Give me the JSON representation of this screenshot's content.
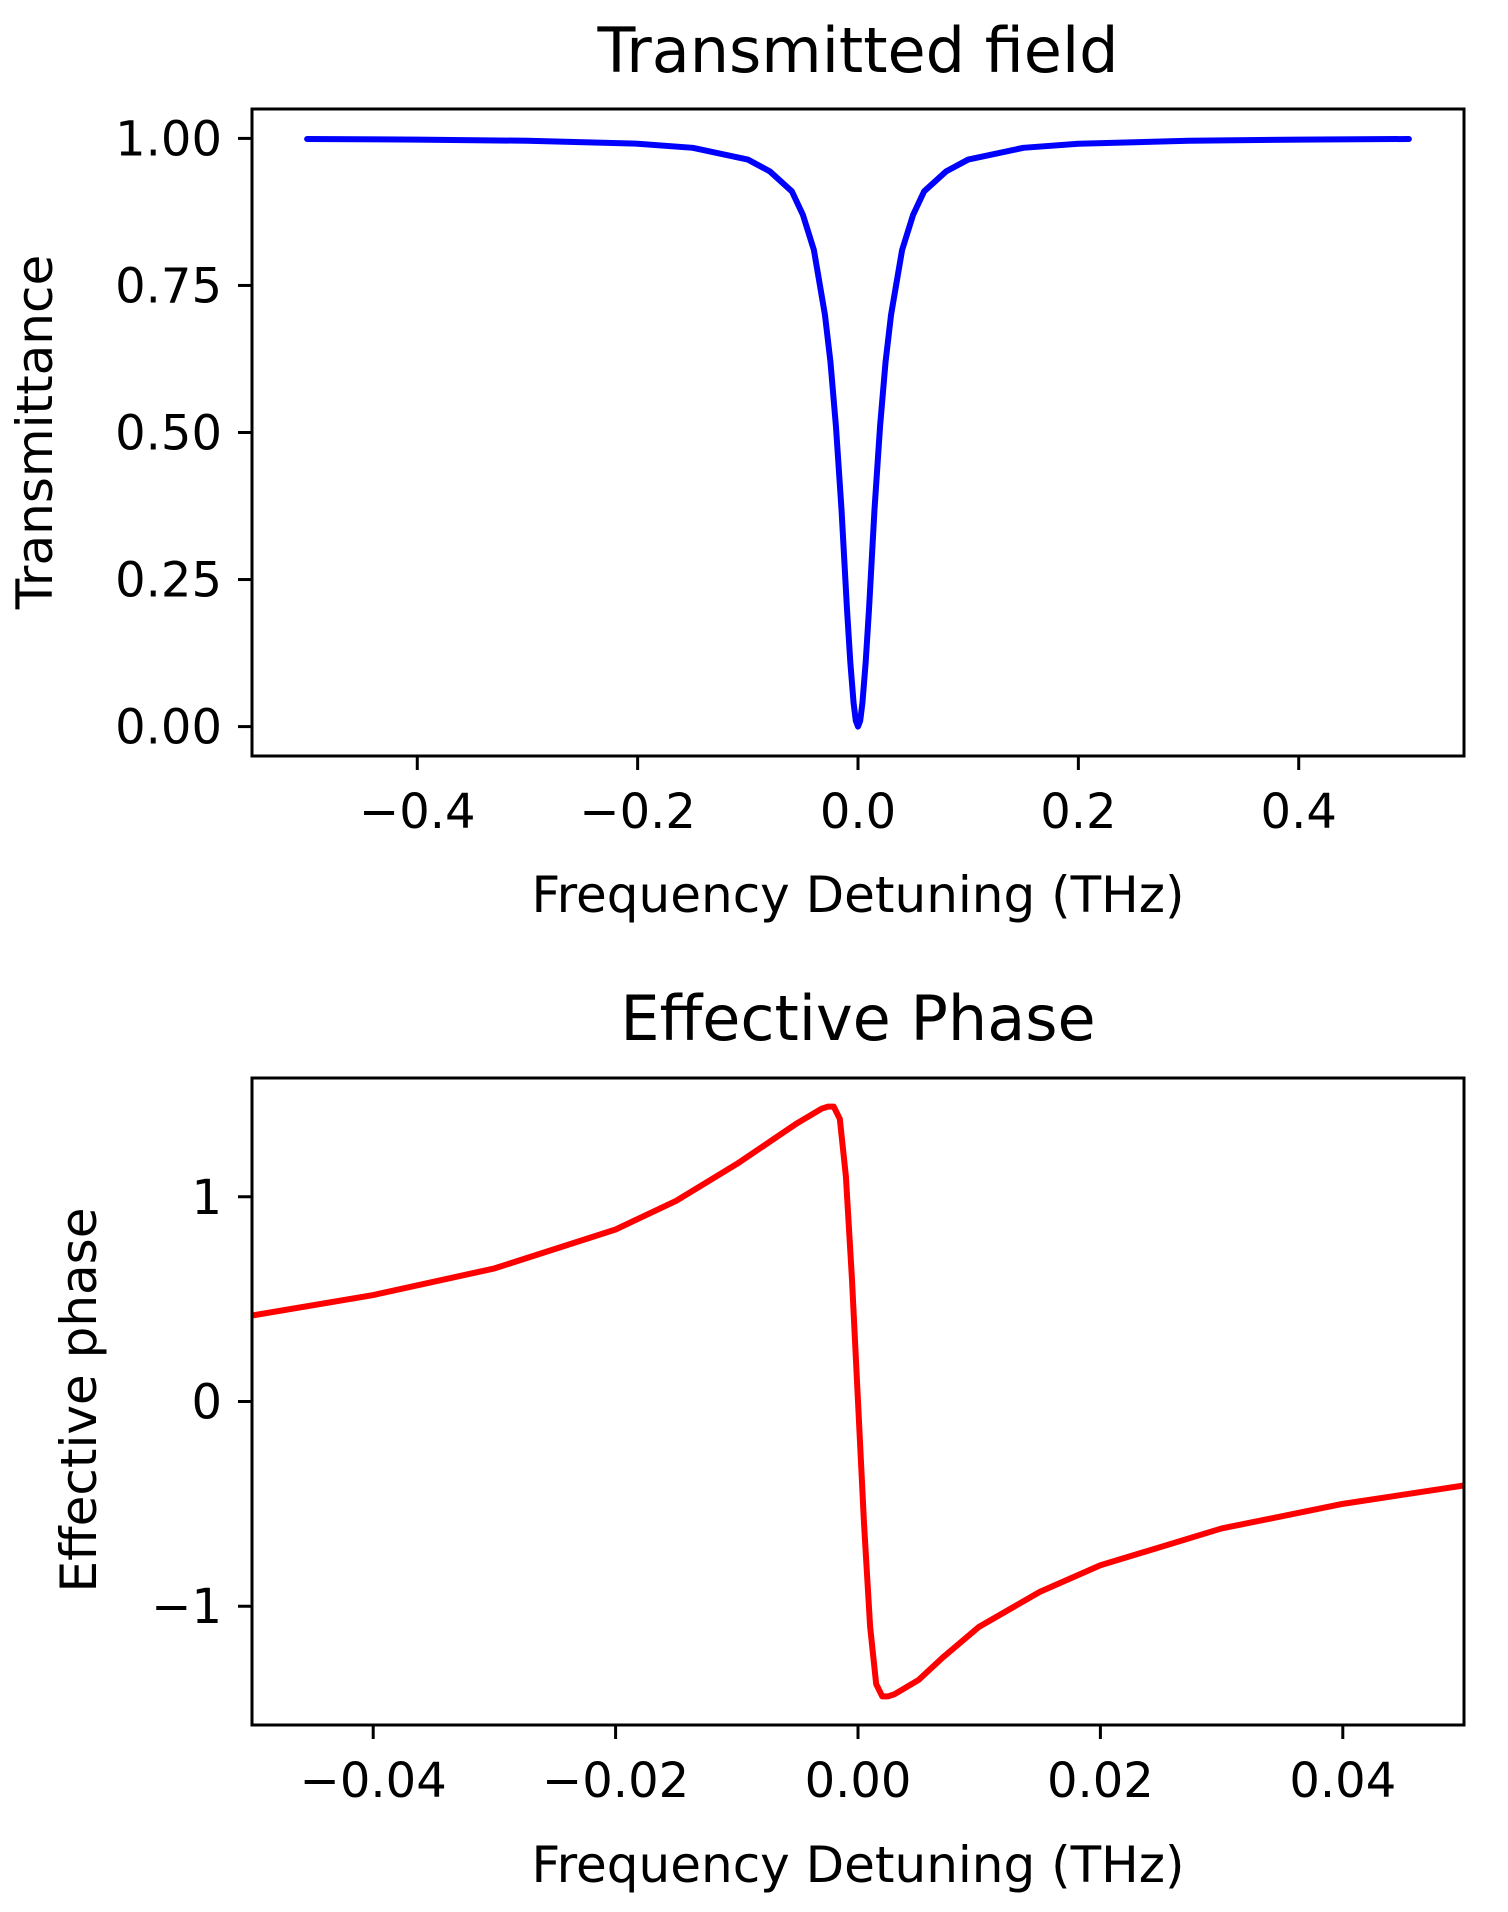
{
  "chart_data": [
    {
      "type": "line",
      "title": "Transmitted field",
      "xlabel": "Frequency Detuning (THz)",
      "ylabel": "Transmittance",
      "xlim": [
        -0.55,
        0.55
      ],
      "ylim": [
        -0.05,
        1.05
      ],
      "xticks": [
        -0.4,
        -0.2,
        0.0,
        0.2,
        0.4
      ],
      "xtick_labels": [
        "−0.4",
        "−0.2",
        "0.0",
        "0.2",
        "0.4"
      ],
      "yticks": [
        0.0,
        0.25,
        0.5,
        0.75,
        1.0
      ],
      "ytick_labels": [
        "0.00",
        "0.25",
        "0.50",
        "0.75",
        "1.00"
      ],
      "grid": false,
      "series": [
        {
          "color": "#0000ff",
          "x": [
            -0.5,
            -0.4,
            -0.3,
            -0.2,
            -0.15,
            -0.1,
            -0.08,
            -0.06,
            -0.05,
            -0.04,
            -0.03,
            -0.025,
            -0.02,
            -0.015,
            -0.01,
            -0.007,
            -0.004,
            -0.002,
            0.0,
            0.002,
            0.004,
            0.007,
            0.01,
            0.015,
            0.02,
            0.025,
            0.03,
            0.04,
            0.05,
            0.06,
            0.08,
            0.1,
            0.15,
            0.2,
            0.3,
            0.4,
            0.5
          ],
          "y": [
            0.999,
            0.998,
            0.996,
            0.991,
            0.984,
            0.964,
            0.944,
            0.91,
            0.87,
            0.81,
            0.7,
            0.62,
            0.51,
            0.37,
            0.2,
            0.11,
            0.04,
            0.01,
            0.0,
            0.01,
            0.04,
            0.11,
            0.2,
            0.37,
            0.51,
            0.62,
            0.7,
            0.81,
            0.87,
            0.91,
            0.944,
            0.964,
            0.984,
            0.991,
            0.996,
            0.998,
            0.999
          ]
        }
      ]
    },
    {
      "type": "line",
      "title": "Effective Phase",
      "xlabel": "Frequency Detuning (THz)",
      "ylabel": "Effective phase",
      "xlim": [
        -0.05,
        0.05
      ],
      "ylim": [
        -1.58,
        1.58
      ],
      "xticks": [
        -0.04,
        -0.02,
        0.0,
        0.02,
        0.04
      ],
      "xtick_labels": [
        "−0.04",
        "−0.02",
        "0.00",
        "0.02",
        "0.04"
      ],
      "yticks": [
        -1,
        0,
        1
      ],
      "ytick_labels": [
        "−1",
        "0",
        "1"
      ],
      "grid": false,
      "series": [
        {
          "color": "#ff0000",
          "x": [
            -0.05,
            -0.04,
            -0.03,
            -0.02,
            -0.015,
            -0.01,
            -0.007,
            -0.005,
            -0.003,
            -0.0025,
            -0.002,
            -0.0015,
            -0.001,
            -0.0005,
            0.0,
            0.0005,
            0.001,
            0.0015,
            0.002,
            0.0025,
            0.003,
            0.005,
            0.007,
            0.01,
            0.015,
            0.02,
            0.03,
            0.04,
            0.05
          ],
          "y": [
            0.42,
            0.52,
            0.65,
            0.84,
            0.98,
            1.16,
            1.28,
            1.36,
            1.43,
            1.44,
            1.44,
            1.38,
            1.1,
            0.6,
            0.0,
            -0.6,
            -1.1,
            -1.38,
            -1.44,
            -1.44,
            -1.43,
            -1.36,
            -1.25,
            -1.1,
            -0.93,
            -0.8,
            -0.62,
            -0.5,
            -0.41
          ]
        }
      ]
    }
  ]
}
